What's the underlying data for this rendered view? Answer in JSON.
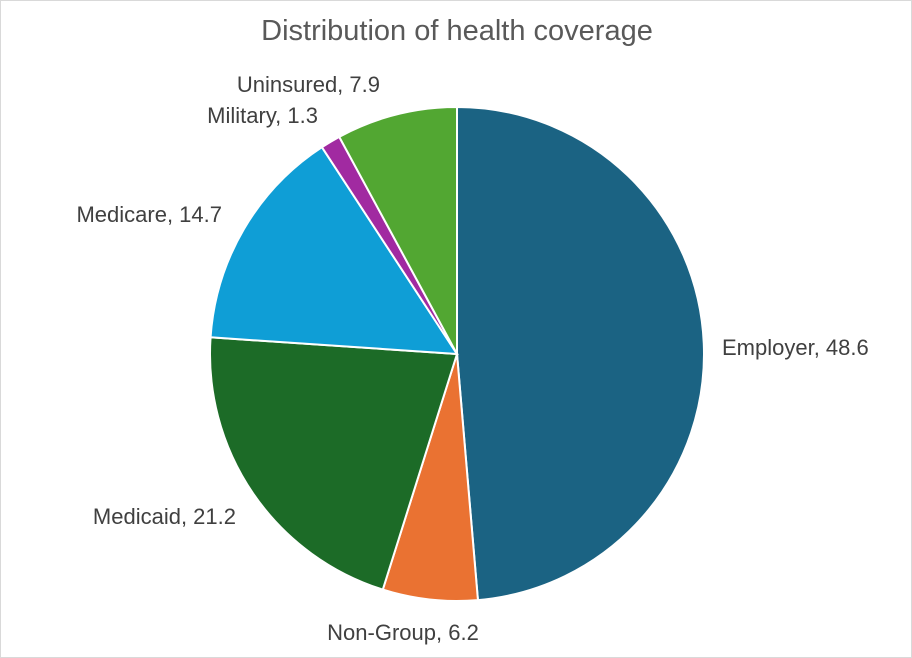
{
  "chart_data": {
    "type": "pie",
    "title": "Distribution of health coverage",
    "slices": [
      {
        "label": "Employer",
        "value": 48.6,
        "color": "#1b6383",
        "display": "Employer, 48.6"
      },
      {
        "label": "Non-Group",
        "value": 6.2,
        "color": "#ea7232",
        "display": "Non-Group, 6.2"
      },
      {
        "label": "Medicaid",
        "value": 21.2,
        "color": "#1c6b27",
        "display": "Medicaid, 21.2"
      },
      {
        "label": "Medicare",
        "value": 14.7,
        "color": "#0f9ed6",
        "display": "Medicare, 14.7"
      },
      {
        "label": "Military",
        "value": 1.3,
        "color": "#a12aa1",
        "display": "Military, 1.3"
      },
      {
        "label": "Uninsured",
        "value": 7.9,
        "color": "#52a732",
        "display": "Uninsured, 7.9"
      }
    ],
    "legend": "none",
    "data_labels": "outside-end"
  }
}
